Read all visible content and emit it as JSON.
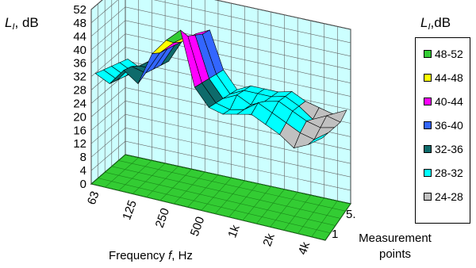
{
  "chart_data": {
    "type": "surface",
    "ylabel": {
      "symbol": "L",
      "subscript": "I",
      "unit": ", dB"
    },
    "legend_title": {
      "symbol": "L",
      "subscript": "I",
      "unit": ",dB"
    },
    "xlabel": "Frequency f, Hz",
    "xlabel_parts": {
      "pre": "Frequency ",
      "var": "f",
      "post": ", Hz"
    },
    "zlabel": "Measurement points",
    "zlabel_lines": [
      "Measurement",
      "points"
    ],
    "z_ticks": [
      "0",
      "4",
      "8",
      "12",
      "16",
      "20",
      "24",
      "28",
      "32",
      "36",
      "40",
      "44",
      "48",
      "52"
    ],
    "ylim": [
      0,
      52
    ],
    "x_ticks": [
      "63",
      "125",
      "250",
      "500",
      "1k",
      "2k",
      "4k"
    ],
    "depth_ticks": [
      "1",
      "5."
    ],
    "legend": [
      {
        "label": "48-52",
        "color": "#33cc33"
      },
      {
        "label": "44-48",
        "color": "#ffff00"
      },
      {
        "label": "40-44",
        "color": "#ff00ff"
      },
      {
        "label": "36-40",
        "color": "#3366ff"
      },
      {
        "label": "32-36",
        "color": "#0e6b6b"
      },
      {
        "label": "28-32",
        "color": "#00ffff"
      },
      {
        "label": "24-28",
        "color": "#c0c0c0"
      }
    ],
    "series": [
      {
        "values": [
          33,
          31,
          36,
          33,
          43,
          48,
          52,
          36,
          31,
          30,
          31,
          32,
          30,
          28,
          25,
          27,
          30
        ]
      },
      {
        "values": [
          32,
          30,
          35,
          34,
          41,
          45,
          48,
          35,
          30,
          29,
          30,
          33,
          31,
          29,
          27,
          26,
          29
        ]
      },
      {
        "values": [
          31,
          29,
          33,
          33,
          40,
          43,
          46,
          34,
          29,
          31,
          29,
          31,
          32,
          30,
          28,
          27,
          28
        ]
      },
      {
        "values": [
          30,
          28,
          32,
          32,
          39,
          42,
          44,
          33,
          28,
          30,
          30,
          30,
          31,
          29,
          26,
          28,
          27
        ]
      },
      {
        "values": [
          29,
          27,
          31,
          31,
          38,
          41,
          43,
          32,
          27,
          29,
          29,
          29,
          30,
          28,
          27,
          26,
          28
        ]
      }
    ]
  }
}
